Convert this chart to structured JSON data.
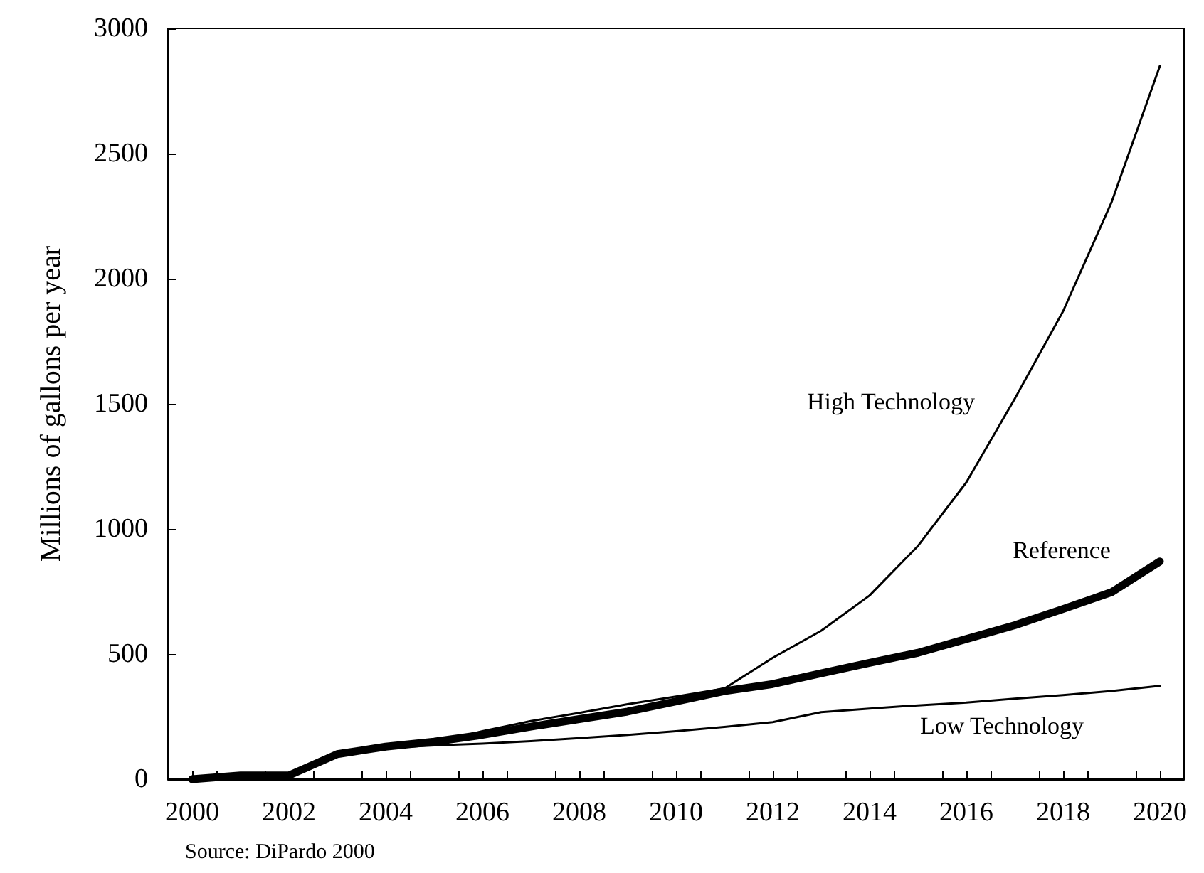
{
  "chart_data": {
    "type": "line",
    "ylabel": "Millions of gallons per year",
    "x": [
      2000,
      2001,
      2002,
      2003,
      2004,
      2005,
      2006,
      2007,
      2008,
      2009,
      2010,
      2011,
      2012,
      2013,
      2014,
      2015,
      2016,
      2017,
      2018,
      2019,
      2020
    ],
    "series": [
      {
        "name": "High Technology",
        "color": "#000000",
        "values": [
          0,
          15,
          15,
          100,
          125,
          145,
          192,
          232,
          265,
          300,
          330,
          362,
          485,
          593,
          734,
          932,
          1186,
          1520,
          1870,
          2305,
          2850
        ]
      },
      {
        "name": "Reference",
        "color": "#000000",
        "values": [
          0,
          15,
          15,
          100,
          130,
          150,
          177,
          210,
          240,
          270,
          311,
          352,
          380,
          423,
          465,
          505,
          560,
          615,
          680,
          747,
          870
        ]
      },
      {
        "name": "Low Technology",
        "color": "#000000",
        "values": [
          0,
          15,
          15,
          100,
          125,
          135,
          142,
          152,
          164,
          177,
          192,
          209,
          228,
          268,
          282,
          295,
          306,
          322,
          336,
          352,
          373
        ]
      }
    ],
    "xlim": [
      1999.5,
      2020.5
    ],
    "xticks": [
      2000,
      2002,
      2004,
      2006,
      2008,
      2010,
      2012,
      2014,
      2016,
      2018,
      2020,
      {
        "value": 2000.5,
        "label": null
      },
      {
        "value": 2001.5,
        "label": null
      },
      {
        "value": 2002.5,
        "label": null
      },
      {
        "value": 2003.5,
        "label": null
      },
      {
        "value": 2004.5,
        "label": null
      },
      {
        "value": 2005.5,
        "label": null
      },
      {
        "value": 2006.5,
        "label": null
      },
      {
        "value": 2007.5,
        "label": null
      },
      {
        "value": 2008.5,
        "label": null
      },
      {
        "value": 2009.5,
        "label": null
      },
      {
        "value": 2010.5,
        "label": null
      },
      {
        "value": 2011.5,
        "label": null
      },
      {
        "value": 2012.5,
        "label": null
      },
      {
        "value": 2013.5,
        "label": null
      },
      {
        "value": 2014.5,
        "label": null
      },
      {
        "value": 2015.5,
        "label": null
      },
      {
        "value": 2016.5,
        "label": null
      },
      {
        "value": 2017.5,
        "label": null
      },
      {
        "value": 2018.5,
        "label": null
      },
      {
        "value": 2019.5,
        "label": null
      }
    ],
    "ylim": [
      0,
      3000
    ],
    "yticks": [
      0,
      500,
      1000,
      1500,
      2000,
      2500,
      3000
    ],
    "grid": false,
    "legend": false,
    "marker": "none",
    "line_style": "solid",
    "annotations": [
      "Source: DiPardo 2000"
    ]
  }
}
